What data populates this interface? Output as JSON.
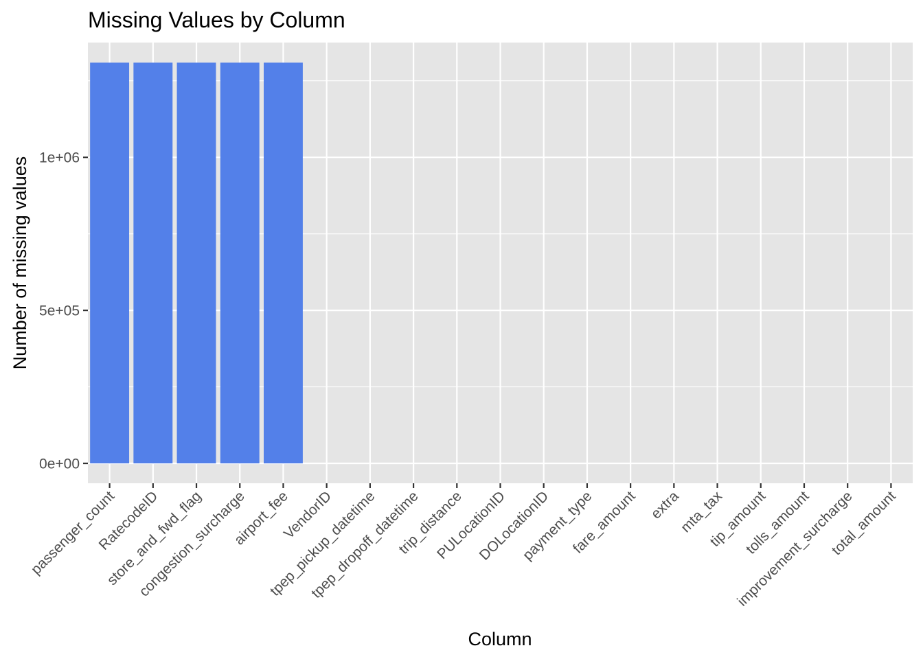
{
  "chart_data": {
    "type": "bar",
    "title": "Missing Values by Column",
    "xlabel": "Column",
    "ylabel": "Number of missing values",
    "categories": [
      "passenger_count",
      "RatecodeID",
      "store_and_fwd_flag",
      "congestion_surcharge",
      "airport_fee",
      "VendorID",
      "tpep_pickup_datetime",
      "tpep_dropoff_datetime",
      "trip_distance",
      "PULocationID",
      "DOLocationID",
      "payment_type",
      "fare_amount",
      "extra",
      "mta_tax",
      "tip_amount",
      "tolls_amount",
      "improvement_surcharge",
      "total_amount"
    ],
    "values": [
      1309356,
      1309356,
      1309356,
      1309356,
      1309356,
      0,
      0,
      0,
      0,
      0,
      0,
      0,
      0,
      0,
      0,
      0,
      0,
      0,
      0
    ],
    "ylim": [
      -65000,
      1375000
    ],
    "yticks": [
      0,
      500000,
      1000000
    ],
    "ytick_labels": [
      "0e+00",
      "5e+05",
      "1e+06"
    ],
    "grid": true,
    "bar_color": "#5380e9",
    "panel_color": "#e5e5e5",
    "grid_color": "#ffffff"
  }
}
